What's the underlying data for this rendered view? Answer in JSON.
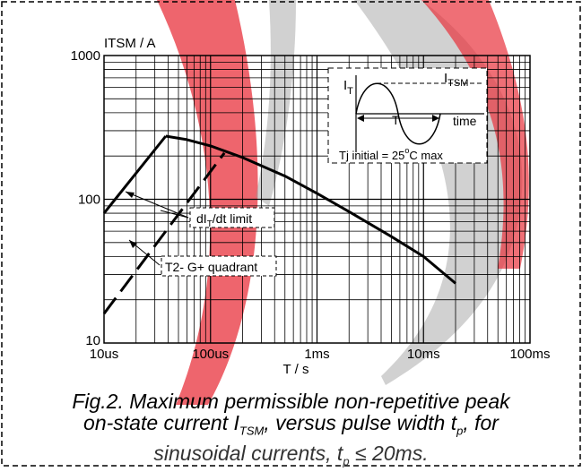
{
  "chart_data": {
    "type": "line",
    "title": "",
    "ylabel": "ITSM / A",
    "xlabel": "T / s",
    "x_scale": "log",
    "y_scale": "log",
    "xlim_s": [
      1e-05,
      0.1
    ],
    "ylim": [
      10,
      1000
    ],
    "x_ticks": [
      {
        "value": 1e-05,
        "label": "10us"
      },
      {
        "value": 0.0001,
        "label": "100us"
      },
      {
        "value": 0.001,
        "label": "1ms"
      },
      {
        "value": 0.01,
        "label": "10ms"
      },
      {
        "value": 0.1,
        "label": "100ms"
      }
    ],
    "y_ticks": [
      {
        "value": 10,
        "label": "10"
      },
      {
        "value": 100,
        "label": "100"
      },
      {
        "value": 1000,
        "label": "1000"
      }
    ],
    "grid": true,
    "series": [
      {
        "name": "dIT/dt limit",
        "style": "solid",
        "points": [
          [
            1e-05,
            80
          ],
          [
            3.8e-05,
            275
          ]
        ]
      },
      {
        "name": "",
        "style": "solid",
        "points": [
          [
            3.8e-05,
            275
          ],
          [
            6e-05,
            260
          ],
          [
            0.0001,
            235
          ],
          [
            0.0002,
            195
          ],
          [
            0.0005,
            145
          ],
          [
            0.001,
            110
          ],
          [
            0.002,
            82
          ],
          [
            0.005,
            55
          ],
          [
            0.01,
            40
          ],
          [
            0.02,
            26
          ]
        ]
      },
      {
        "name": "T2- G+ quadrant",
        "style": "dashed",
        "points": [
          [
            1e-05,
            16
          ],
          [
            0.000135,
            210
          ]
        ]
      }
    ],
    "annotations": [
      {
        "label_main": "dI",
        "label_sub": "T",
        "label_rest": "/dt limit"
      },
      {
        "label_main": "T2- G+ quadrant"
      }
    ],
    "inset": {
      "y_label_main": "I",
      "y_label_sub": "T",
      "peak_label_main": "I",
      "peak_label_sub": "TSM",
      "period_label": "T",
      "x_label": "time",
      "condition_main": "Tj initial = 25",
      "condition_degree": "o",
      "condition_rest": "C max"
    }
  },
  "caption": {
    "line1": "Fig.2.   Maximum permissible non-repetitive peak",
    "line2_a": "on-state current I",
    "line2_sub": "TSM",
    "line2_b": ", versus pulse width t",
    "line2_sub2": "p",
    "line2_c": ", for",
    "line3_a": "sinusoidal currents, t",
    "line3_sub": "p",
    "line3_b": " ≤ 20ms."
  },
  "colors": {
    "watermark_red": "#e8323c",
    "watermark_gray": "#9a9a9a",
    "ink": "#000000"
  }
}
